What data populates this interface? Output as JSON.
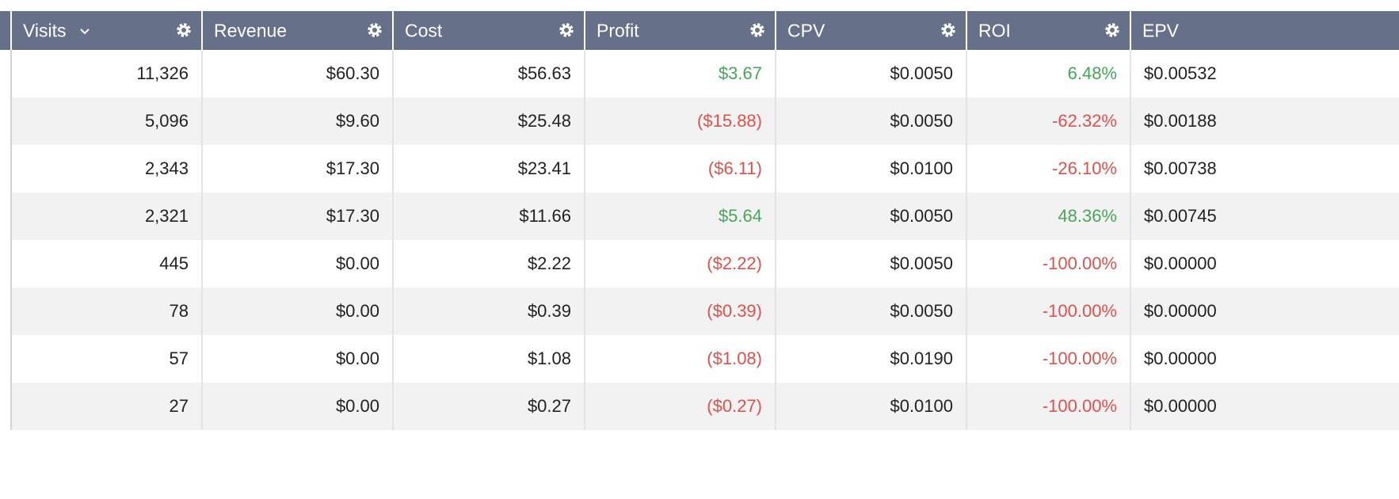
{
  "colors": {
    "header_bg": "#667089",
    "positive": "#4aa55b",
    "negative": "#e0514e",
    "row_alt": "#f2f2f2"
  },
  "columns": [
    {
      "key": "visits",
      "label": "Visits",
      "sortable": true,
      "sort_icon": "chevron-down-icon",
      "settings_icon": "gear-icon"
    },
    {
      "key": "revenue",
      "label": "Revenue",
      "settings_icon": "gear-icon"
    },
    {
      "key": "cost",
      "label": "Cost",
      "settings_icon": "gear-icon"
    },
    {
      "key": "profit",
      "label": "Profit",
      "settings_icon": "gear-icon"
    },
    {
      "key": "cpv",
      "label": "CPV",
      "settings_icon": "gear-icon"
    },
    {
      "key": "roi",
      "label": "ROI",
      "settings_icon": "gear-icon"
    },
    {
      "key": "epv",
      "label": "EPV"
    }
  ],
  "rows": [
    {
      "visits": "11,326",
      "revenue": "$60.30",
      "cost": "$56.63",
      "profit": "$3.67",
      "cpv": "$0.0050",
      "roi": "6.48%",
      "epv": "$0.00532"
    },
    {
      "visits": "5,096",
      "revenue": "$9.60",
      "cost": "$25.48",
      "profit": "($15.88)",
      "cpv": "$0.0050",
      "roi": "-62.32%",
      "epv": "$0.00188"
    },
    {
      "visits": "2,343",
      "revenue": "$17.30",
      "cost": "$23.41",
      "profit": "($6.11)",
      "cpv": "$0.0100",
      "roi": "-26.10%",
      "epv": "$0.00738"
    },
    {
      "visits": "2,321",
      "revenue": "$17.30",
      "cost": "$11.66",
      "profit": "$5.64",
      "cpv": "$0.0050",
      "roi": "48.36%",
      "epv": "$0.00745"
    },
    {
      "visits": "445",
      "revenue": "$0.00",
      "cost": "$2.22",
      "profit": "($2.22)",
      "cpv": "$0.0050",
      "roi": "-100.00%",
      "epv": "$0.00000"
    },
    {
      "visits": "78",
      "revenue": "$0.00",
      "cost": "$0.39",
      "profit": "($0.39)",
      "cpv": "$0.0050",
      "roi": "-100.00%",
      "epv": "$0.00000"
    },
    {
      "visits": "57",
      "revenue": "$0.00",
      "cost": "$1.08",
      "profit": "($1.08)",
      "cpv": "$0.0190",
      "roi": "-100.00%",
      "epv": "$0.00000"
    },
    {
      "visits": "27",
      "revenue": "$0.00",
      "cost": "$0.27",
      "profit": "($0.27)",
      "cpv": "$0.0100",
      "roi": "-100.00%",
      "epv": "$0.00000"
    }
  ]
}
